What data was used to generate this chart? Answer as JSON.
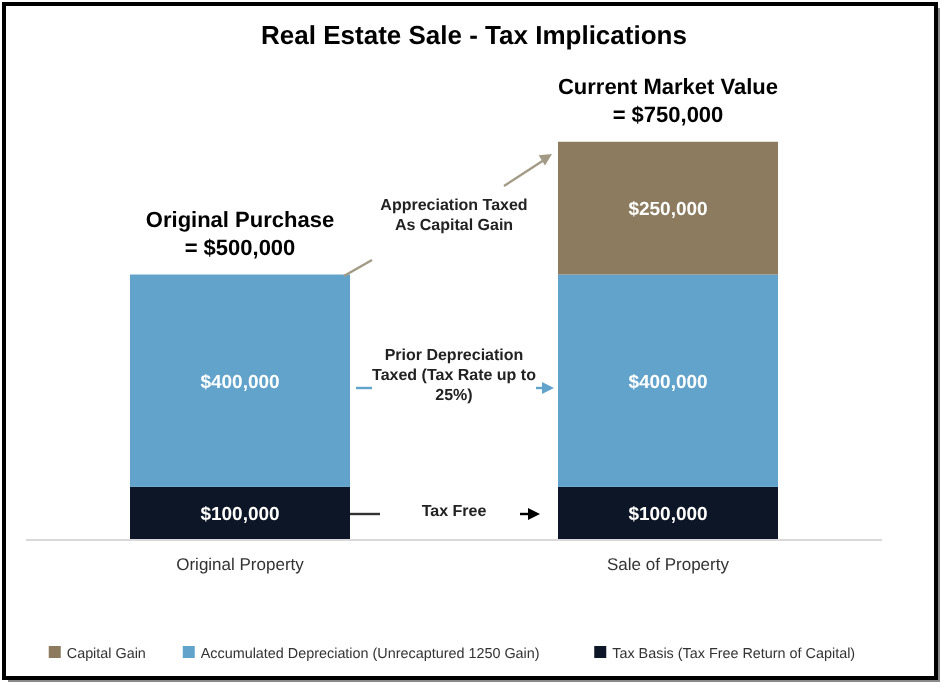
{
  "chart_data": {
    "type": "bar",
    "title": "Real Estate Sale - Tax Implications",
    "categories": [
      "Original Property",
      "Sale of Property"
    ],
    "stacked": true,
    "series": [
      {
        "name": "Tax Basis (Tax Free Return of Capital)",
        "color": "#0d1626",
        "values": [
          100000,
          100000
        ],
        "value_labels": [
          "$100,000",
          "$100,000"
        ]
      },
      {
        "name": "Accumulated Depreciation (Unrecaptured 1250 Gain)",
        "color": "#62a3cc",
        "values": [
          400000,
          400000
        ],
        "value_labels": [
          "$400,000",
          "$400,000"
        ]
      },
      {
        "name": "Capital Gain",
        "color": "#8c7b5e",
        "values": [
          null,
          250000
        ],
        "value_labels": [
          null,
          "$250,000"
        ]
      }
    ],
    "annotations": [
      {
        "text": "Original Purchase\n= $500,000",
        "x": "Original Property",
        "y": 500000
      },
      {
        "text": "Current Market Value\n= $750,000",
        "x": "Sale of Property",
        "y": 750000
      },
      "Appreciation Taxed\nAs Capital Gain",
      "Prior Depreciation\nTaxed (Tax Rate up to\n25%)",
      "Tax Free"
    ],
    "legend": "bottom"
  }
}
